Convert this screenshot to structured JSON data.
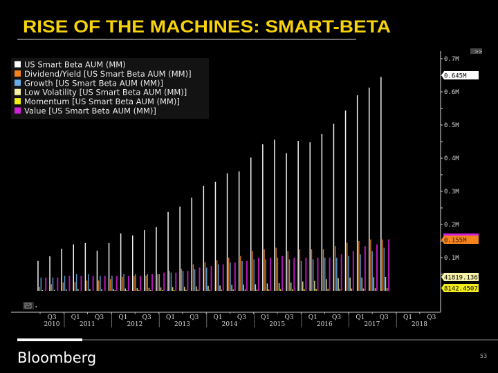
{
  "slide": {
    "title": "RISE OF THE MACHINES: SMART-BETA",
    "brand": "Bloomberg",
    "page_number": "53",
    "expand_button": ">>"
  },
  "chart_data": {
    "type": "bar",
    "title": "",
    "xlabel": "",
    "ylabel": "",
    "ylim": [
      0,
      0.7
    ],
    "y_unit": "M",
    "y_axis_position": "right",
    "y_ticks": [
      "0.7M",
      "0.6M",
      "0.5M",
      "0.4M",
      "0.3M",
      "0.2M",
      "0.1M"
    ],
    "y_tick_values": [
      0.7,
      0.6,
      0.5,
      0.4,
      0.3,
      0.2,
      0.1
    ],
    "grid": false,
    "legend_position": "top-left",
    "background": "#000000",
    "categories": [
      "Q2 2010",
      "Q3 2010",
      "Q4 2010",
      "Q1 2011",
      "Q2 2011",
      "Q3 2011",
      "Q4 2011",
      "Q1 2012",
      "Q2 2012",
      "Q3 2012",
      "Q4 2012",
      "Q1 2013",
      "Q2 2013",
      "Q3 2013",
      "Q4 2013",
      "Q1 2014",
      "Q2 2014",
      "Q3 2014",
      "Q4 2014",
      "Q1 2015",
      "Q2 2015",
      "Q3 2015",
      "Q4 2015",
      "Q1 2016",
      "Q2 2016",
      "Q3 2016",
      "Q4 2016",
      "Q1 2017",
      "Q2 2017",
      "Q3 2017"
    ],
    "x_quarter_ticks": [
      {
        "q": "Q3",
        "year": "2010"
      },
      {
        "q": "Q1",
        "year": "2011"
      },
      {
        "q": "Q3",
        "year": ""
      },
      {
        "q": "Q1",
        "year": "2012"
      },
      {
        "q": "Q3",
        "year": ""
      },
      {
        "q": "Q1",
        "year": "2013"
      },
      {
        "q": "Q3",
        "year": ""
      },
      {
        "q": "Q1",
        "year": "2014"
      },
      {
        "q": "Q3",
        "year": ""
      },
      {
        "q": "Q1",
        "year": "2015"
      },
      {
        "q": "Q3",
        "year": ""
      },
      {
        "q": "Q1",
        "year": "2016"
      },
      {
        "q": "Q3",
        "year": ""
      },
      {
        "q": "Q1",
        "year": "2017"
      },
      {
        "q": "Q3",
        "year": ""
      },
      {
        "q": "Q1",
        "year": "2018"
      },
      {
        "q": "Q3",
        "year": ""
      }
    ],
    "series": [
      {
        "name": "US Smart Beta AUM (MM)",
        "color": "#ffffff",
        "values": [
          0.09,
          0.104,
          0.127,
          0.14,
          0.144,
          0.121,
          0.144,
          0.173,
          0.167,
          0.183,
          0.192,
          0.238,
          0.254,
          0.281,
          0.317,
          0.329,
          0.354,
          0.36,
          0.402,
          0.442,
          0.456,
          0.415,
          0.452,
          0.448,
          0.473,
          0.504,
          0.544,
          0.59,
          0.613,
          0.645
        ],
        "last_label": "0.645M"
      },
      {
        "name": "Dividend/Yield [US Smart Beta AUM (MM)]",
        "color": "#f5841f",
        "values": [
          0.012,
          0.02,
          0.025,
          0.027,
          0.031,
          0.031,
          0.035,
          0.042,
          0.045,
          0.046,
          0.05,
          0.06,
          0.066,
          0.08,
          0.086,
          0.092,
          0.1,
          0.105,
          0.12,
          0.125,
          0.13,
          0.12,
          0.125,
          0.125,
          0.125,
          0.135,
          0.145,
          0.15,
          0.155,
          0.155
        ],
        "last_label": "0.155M"
      },
      {
        "name": "Growth [US Smart Beta AUM (MM)]",
        "color": "#6aaee8",
        "values": [
          0.04,
          0.04,
          0.045,
          0.05,
          0.05,
          0.045,
          0.045,
          0.05,
          0.05,
          0.05,
          0.05,
          0.055,
          0.06,
          0.065,
          0.07,
          0.08,
          0.085,
          0.09,
          0.095,
          0.095,
          0.1,
          0.095,
          0.09,
          0.095,
          0.1,
          0.1,
          0.105,
          0.11,
          0.12,
          0.13
        ]
      },
      {
        "name": "Low Volatility [US Smart Beta AUM (MM)]",
        "color": "#f7f3a6",
        "values": [
          0.002,
          0.003,
          0.004,
          0.005,
          0.005,
          0.005,
          0.006,
          0.007,
          0.008,
          0.009,
          0.01,
          0.011,
          0.012,
          0.013,
          0.015,
          0.016,
          0.018,
          0.019,
          0.02,
          0.022,
          0.023,
          0.025,
          0.028,
          0.03,
          0.035,
          0.038,
          0.04,
          0.04,
          0.041,
          0.0418
        ],
        "last_label": "41819.1367"
      },
      {
        "name": "Momentum [US Smart Beta AUM (MM)]",
        "color": "#f3ec1a",
        "values": [
          0.0,
          0.0,
          0.0,
          0.0,
          0.0,
          0.0,
          0.001,
          0.001,
          0.002,
          0.002,
          0.002,
          0.002,
          0.003,
          0.003,
          0.003,
          0.003,
          0.004,
          0.004,
          0.004,
          0.004,
          0.005,
          0.005,
          0.005,
          0.006,
          0.006,
          0.006,
          0.007,
          0.007,
          0.008,
          0.0081
        ],
        "last_label": "8142.4507"
      },
      {
        "name": "Value [US Smart Beta AUM (MM)]",
        "color": "#d21fd8",
        "values": [
          0.04,
          0.04,
          0.045,
          0.045,
          0.045,
          0.045,
          0.045,
          0.045,
          0.045,
          0.05,
          0.055,
          0.055,
          0.06,
          0.07,
          0.075,
          0.08,
          0.085,
          0.09,
          0.1,
          0.1,
          0.105,
          0.1,
          0.1,
          0.1,
          0.1,
          0.11,
          0.12,
          0.135,
          0.14,
          0.155
        ]
      }
    ]
  }
}
